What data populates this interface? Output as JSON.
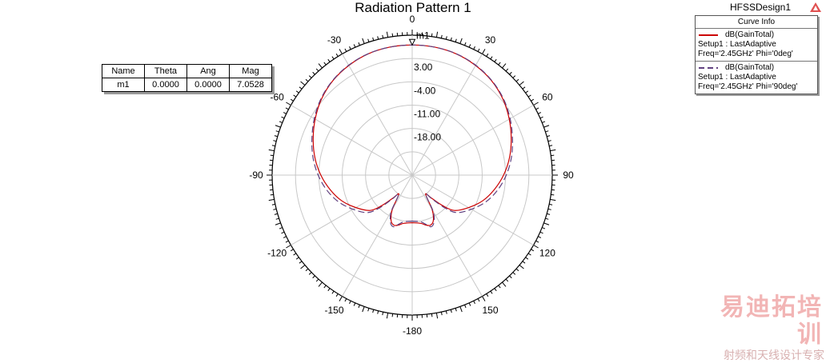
{
  "chart_data": {
    "type": "polar-line",
    "title": "Radiation Pattern 1",
    "angle_ticks": [
      {
        "angle": 0,
        "label": "0"
      },
      {
        "angle": 30,
        "label": "30"
      },
      {
        "angle": 60,
        "label": "60"
      },
      {
        "angle": 90,
        "label": "90"
      },
      {
        "angle": 120,
        "label": "120"
      },
      {
        "angle": 150,
        "label": "150"
      },
      {
        "angle": 180,
        "label": "-180"
      },
      {
        "angle": -150,
        "label": "-150"
      },
      {
        "angle": -120,
        "label": "-120"
      },
      {
        "angle": -90,
        "label": "-90"
      },
      {
        "angle": -60,
        "label": "-60"
      },
      {
        "angle": -30,
        "label": "-30"
      }
    ],
    "r_range": [
      -32,
      10
    ],
    "r_ring_labels": [
      {
        "value": 3,
        "label": "3.00"
      },
      {
        "value": -4,
        "label": "-4.00"
      },
      {
        "value": -11,
        "label": "-11.00"
      },
      {
        "value": -18,
        "label": "-18.00"
      }
    ],
    "r_rings": [
      -25,
      -18,
      -11,
      -4,
      3,
      10
    ],
    "grid": true,
    "series": [
      {
        "name": "dB(GainTotal)",
        "color": "#cc0000",
        "dash": "solid",
        "points": [
          [
            -180,
            -17.7
          ],
          [
            -170,
            -17.3
          ],
          [
            -165,
            -16.5
          ],
          [
            -160,
            -16.0
          ],
          [
            -155,
            -17.0
          ],
          [
            -150,
            -20.0
          ],
          [
            -145,
            -25.0
          ],
          [
            -140,
            -23.0
          ],
          [
            -135,
            -19.0
          ],
          [
            -130,
            -15.5
          ],
          [
            -120,
            -12.5
          ],
          [
            -110,
            -9.5
          ],
          [
            -100,
            -7.0
          ],
          [
            -90,
            -4.6
          ],
          [
            -80,
            -2.4
          ],
          [
            -70,
            -0.4
          ],
          [
            -60,
            1.6
          ],
          [
            -50,
            3.5
          ],
          [
            -40,
            5.0
          ],
          [
            -30,
            6.0
          ],
          [
            -20,
            6.7
          ],
          [
            -10,
            7.0
          ],
          [
            0,
            7.05
          ],
          [
            10,
            7.0
          ],
          [
            20,
            6.7
          ],
          [
            30,
            6.0
          ],
          [
            40,
            5.0
          ],
          [
            50,
            3.5
          ],
          [
            60,
            1.6
          ],
          [
            70,
            -0.4
          ],
          [
            80,
            -2.4
          ],
          [
            90,
            -4.6
          ],
          [
            100,
            -7.0
          ],
          [
            110,
            -9.5
          ],
          [
            120,
            -12.5
          ],
          [
            130,
            -15.5
          ],
          [
            135,
            -19.0
          ],
          [
            140,
            -23.0
          ],
          [
            145,
            -25.0
          ],
          [
            150,
            -20.0
          ],
          [
            155,
            -17.0
          ],
          [
            160,
            -16.0
          ],
          [
            165,
            -16.5
          ],
          [
            170,
            -17.3
          ],
          [
            180,
            -17.7
          ]
        ]
      },
      {
        "name": "dB(GainTotal)",
        "color": "#604080",
        "dash": "dashed",
        "points": [
          [
            -180,
            -18.2
          ],
          [
            -170,
            -17.8
          ],
          [
            -165,
            -16.8
          ],
          [
            -160,
            -15.5
          ],
          [
            -155,
            -16.5
          ],
          [
            -150,
            -19.5
          ],
          [
            -145,
            -25.0
          ],
          [
            -140,
            -22.5
          ],
          [
            -135,
            -18.0
          ],
          [
            -130,
            -14.5
          ],
          [
            -120,
            -11.5
          ],
          [
            -110,
            -8.5
          ],
          [
            -100,
            -6.0
          ],
          [
            -90,
            -3.8
          ],
          [
            -80,
            -1.8
          ],
          [
            -70,
            0.0
          ],
          [
            -60,
            1.9
          ],
          [
            -50,
            3.7
          ],
          [
            -40,
            5.1
          ],
          [
            -30,
            6.1
          ],
          [
            -20,
            6.75
          ],
          [
            -10,
            7.0
          ],
          [
            0,
            7.05
          ],
          [
            10,
            7.0
          ],
          [
            20,
            6.75
          ],
          [
            30,
            6.1
          ],
          [
            40,
            5.1
          ],
          [
            50,
            3.7
          ],
          [
            60,
            1.9
          ],
          [
            70,
            0.0
          ],
          [
            80,
            -1.8
          ],
          [
            90,
            -3.8
          ],
          [
            100,
            -6.0
          ],
          [
            110,
            -8.5
          ],
          [
            120,
            -11.5
          ],
          [
            130,
            -14.5
          ],
          [
            135,
            -18.0
          ],
          [
            140,
            -22.5
          ],
          [
            145,
            -25.0
          ],
          [
            150,
            -19.5
          ],
          [
            155,
            -16.5
          ],
          [
            160,
            -15.5
          ],
          [
            165,
            -16.8
          ],
          [
            170,
            -17.8
          ],
          [
            180,
            -18.2
          ]
        ]
      }
    ],
    "marker": {
      "name": "m1",
      "theta": 0,
      "value": 7.0528
    }
  },
  "marker_table": {
    "headers": [
      "Name",
      "Theta",
      "Ang",
      "Mag"
    ],
    "row": [
      "m1",
      "0.0000",
      "0.0000",
      "7.0528"
    ]
  },
  "design_label": "HFSSDesign1",
  "legend": {
    "title": "Curve Info",
    "entries": [
      {
        "name": "dB(GainTotal)",
        "line2": "Setup1 : LastAdaptive",
        "line3": "Freq='2.45GHz' Phi='0deg'",
        "color": "#cc0000",
        "dash": "solid"
      },
      {
        "name": "dB(GainTotal)",
        "line2": "Setup1 : LastAdaptive",
        "line3": "Freq='2.45GHz' Phi='90deg'",
        "color": "#604080",
        "dash": "dashed"
      }
    ]
  },
  "watermark": {
    "main": "易迪拓培训",
    "sub": "射频和天线设计专家"
  }
}
